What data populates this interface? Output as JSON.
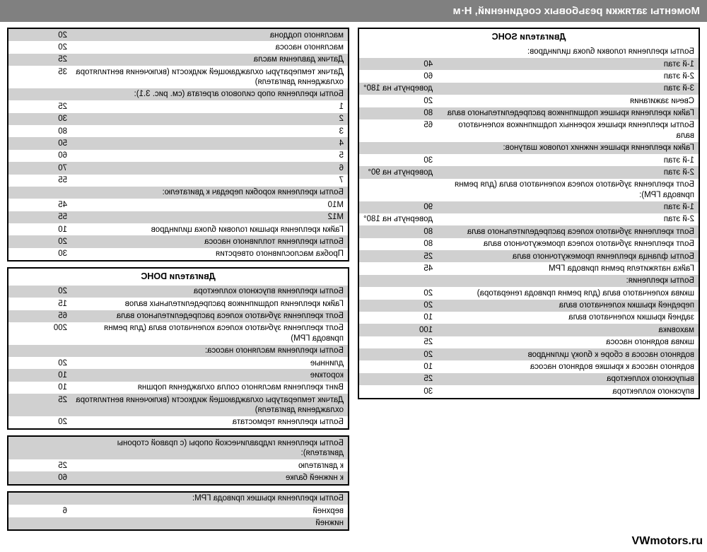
{
  "title": "Моменты затяжки резьбовых соединений, Н·м",
  "watermark": "VWmotors.ru",
  "leftTables": [
    {
      "header": "Двигатели SOHC",
      "rows": [
        {
          "label": "Болты крепления головки блока цилиндров:",
          "val": "",
          "stripe": false
        },
        {
          "label": "1-й этап",
          "val": "40",
          "stripe": true
        },
        {
          "label": "2-й этап",
          "val": "60",
          "stripe": false
        },
        {
          "label": "3-й этап",
          "val": "довернуть на 180°",
          "stripe": true
        },
        {
          "label": "Свечи зажигания",
          "val": "20",
          "stripe": false
        },
        {
          "label": "Гайки крепления крышек подшипников распределительного вала",
          "val": "80",
          "stripe": true
        },
        {
          "label": "Болты крепления крышек коренных подшипников коленчатого вала",
          "val": "65",
          "stripe": false
        },
        {
          "label": "Гайки крепления крышек нижних головок шатунов:",
          "val": "",
          "stripe": true
        },
        {
          "label": "1-й этап",
          "val": "30",
          "stripe": false
        },
        {
          "label": "2-й этап",
          "val": "довернуть на 90°",
          "stripe": true
        },
        {
          "label": "Болт крепления зубчатого колеса коленчатого вала (для ремня привода ГРМ):",
          "val": "",
          "stripe": false
        },
        {
          "label": "1-й этап",
          "val": "90",
          "stripe": true
        },
        {
          "label": "2-й этап",
          "val": "довернуть на 180°",
          "stripe": false
        },
        {
          "label": "Болт крепления зубчатого колеса распределительного вала",
          "val": "80",
          "stripe": true
        },
        {
          "label": "Болт крепления зубчатого колеса промежуточного вала",
          "val": "80",
          "stripe": false
        },
        {
          "label": "Болты фланца крепления промежуточного вала",
          "val": "25",
          "stripe": true
        },
        {
          "label": "Гайка натяжителя ремня привода ГРМ",
          "val": "45",
          "stripe": false
        },
        {
          "label": "Болты крепления:",
          "val": "",
          "stripe": true
        },
        {
          "label": "шкива коленчатого вала (для ремня привода генератора)",
          "val": "20",
          "stripe": false
        },
        {
          "label": "передней крышки коленчатого вала",
          "val": "20",
          "stripe": true
        },
        {
          "label": "задней крышки коленчатого вала",
          "val": "10",
          "stripe": false
        },
        {
          "label": "маховика",
          "val": "100",
          "stripe": true
        },
        {
          "label": "шкива водяного насоса",
          "val": "25",
          "stripe": false
        },
        {
          "label": "водяного насоса в сборе к блоку цилиндров",
          "val": "20",
          "stripe": true
        },
        {
          "label": "водяного насоса к крышке водяного насоса",
          "val": "10",
          "stripe": false
        },
        {
          "label": "выпускного коллектора",
          "val": "25",
          "stripe": true
        },
        {
          "label": "впускного коллектора",
          "val": "30",
          "stripe": false
        }
      ]
    }
  ],
  "rightTables": [
    {
      "header": null,
      "rows": [
        {
          "label": "масляного поддона",
          "val": "20",
          "stripe": true
        },
        {
          "label": "масляного насоса",
          "val": "20",
          "stripe": false
        },
        {
          "label": "Датчик давления масла",
          "val": "25",
          "stripe": true
        },
        {
          "label": "Датчик температуры охлаждающей жидкости (включения вентилятора охлаждения двигателя)",
          "val": "35",
          "stripe": false
        },
        {
          "label": "Болты крепления опор силового агрегата (см. рис. 3.1):",
          "val": "",
          "stripe": true
        },
        {
          "label": "1",
          "val": "25",
          "stripe": false
        },
        {
          "label": "2",
          "val": "30",
          "stripe": true
        },
        {
          "label": "3",
          "val": "80",
          "stripe": false
        },
        {
          "label": "4",
          "val": "50",
          "stripe": true
        },
        {
          "label": "5",
          "val": "60",
          "stripe": false
        },
        {
          "label": "6",
          "val": "70",
          "stripe": true
        },
        {
          "label": "7",
          "val": "55",
          "stripe": false
        },
        {
          "label": "Болты крепления коробки передач к двигателю:",
          "val": "",
          "stripe": true
        },
        {
          "label": "М10",
          "val": "45",
          "stripe": false
        },
        {
          "label": "М12",
          "val": "55",
          "stripe": true
        },
        {
          "label": "Гайки крепления крышки головки блока цилиндров",
          "val": "10",
          "stripe": false
        },
        {
          "label": "Болты крепления топливного насоса",
          "val": "20",
          "stripe": true
        },
        {
          "label": "Пробка маслосливного отверстия",
          "val": "30",
          "stripe": false
        }
      ]
    },
    {
      "header": "Двигатели DOHC",
      "rows": [
        {
          "label": "Болты крепления впускного коллектора",
          "val": "20",
          "stripe": true
        },
        {
          "label": "Гайки крепления подшипников распределительных валов",
          "val": "15",
          "stripe": false
        },
        {
          "label": "Болт крепления зубчатого колеса распределительного вала",
          "val": "65",
          "stripe": true
        },
        {
          "label": "Болт крепления зубчатого колеса коленчатого вала (для ремня привода ГРМ)",
          "val": "200",
          "stripe": false
        },
        {
          "label": "Болты крепления масляного насоса:",
          "val": "",
          "stripe": true
        },
        {
          "label": "длинные",
          "val": "20",
          "stripe": false
        },
        {
          "label": "короткие",
          "val": "10",
          "stripe": true
        },
        {
          "label": "Винт крепления масляного сопла охлаждения поршня",
          "val": "10",
          "stripe": false
        },
        {
          "label": "Датчик температуры охлаждающей жидкости (включения вентилятора охлаждения двигателя)",
          "val": "25",
          "stripe": true
        },
        {
          "label": "Болты крепления термостата",
          "val": "20",
          "stripe": false
        }
      ]
    },
    {
      "header": null,
      "rows": [
        {
          "label": "Болты крепления гидравлической опоры (с правой стороны двигателя):",
          "val": "",
          "stripe": true
        },
        {
          "label": "к двигателю",
          "val": "25",
          "stripe": false
        },
        {
          "label": "к нижней балке",
          "val": "60",
          "stripe": true
        }
      ]
    },
    {
      "header": null,
      "rows": [
        {
          "label": "Болты крепления крышек привода ГРМ:",
          "val": "",
          "stripe": true
        },
        {
          "label": "верхней",
          "val": "6",
          "stripe": false
        },
        {
          "label": "нижней",
          "val": "",
          "stripe": true
        }
      ]
    }
  ]
}
